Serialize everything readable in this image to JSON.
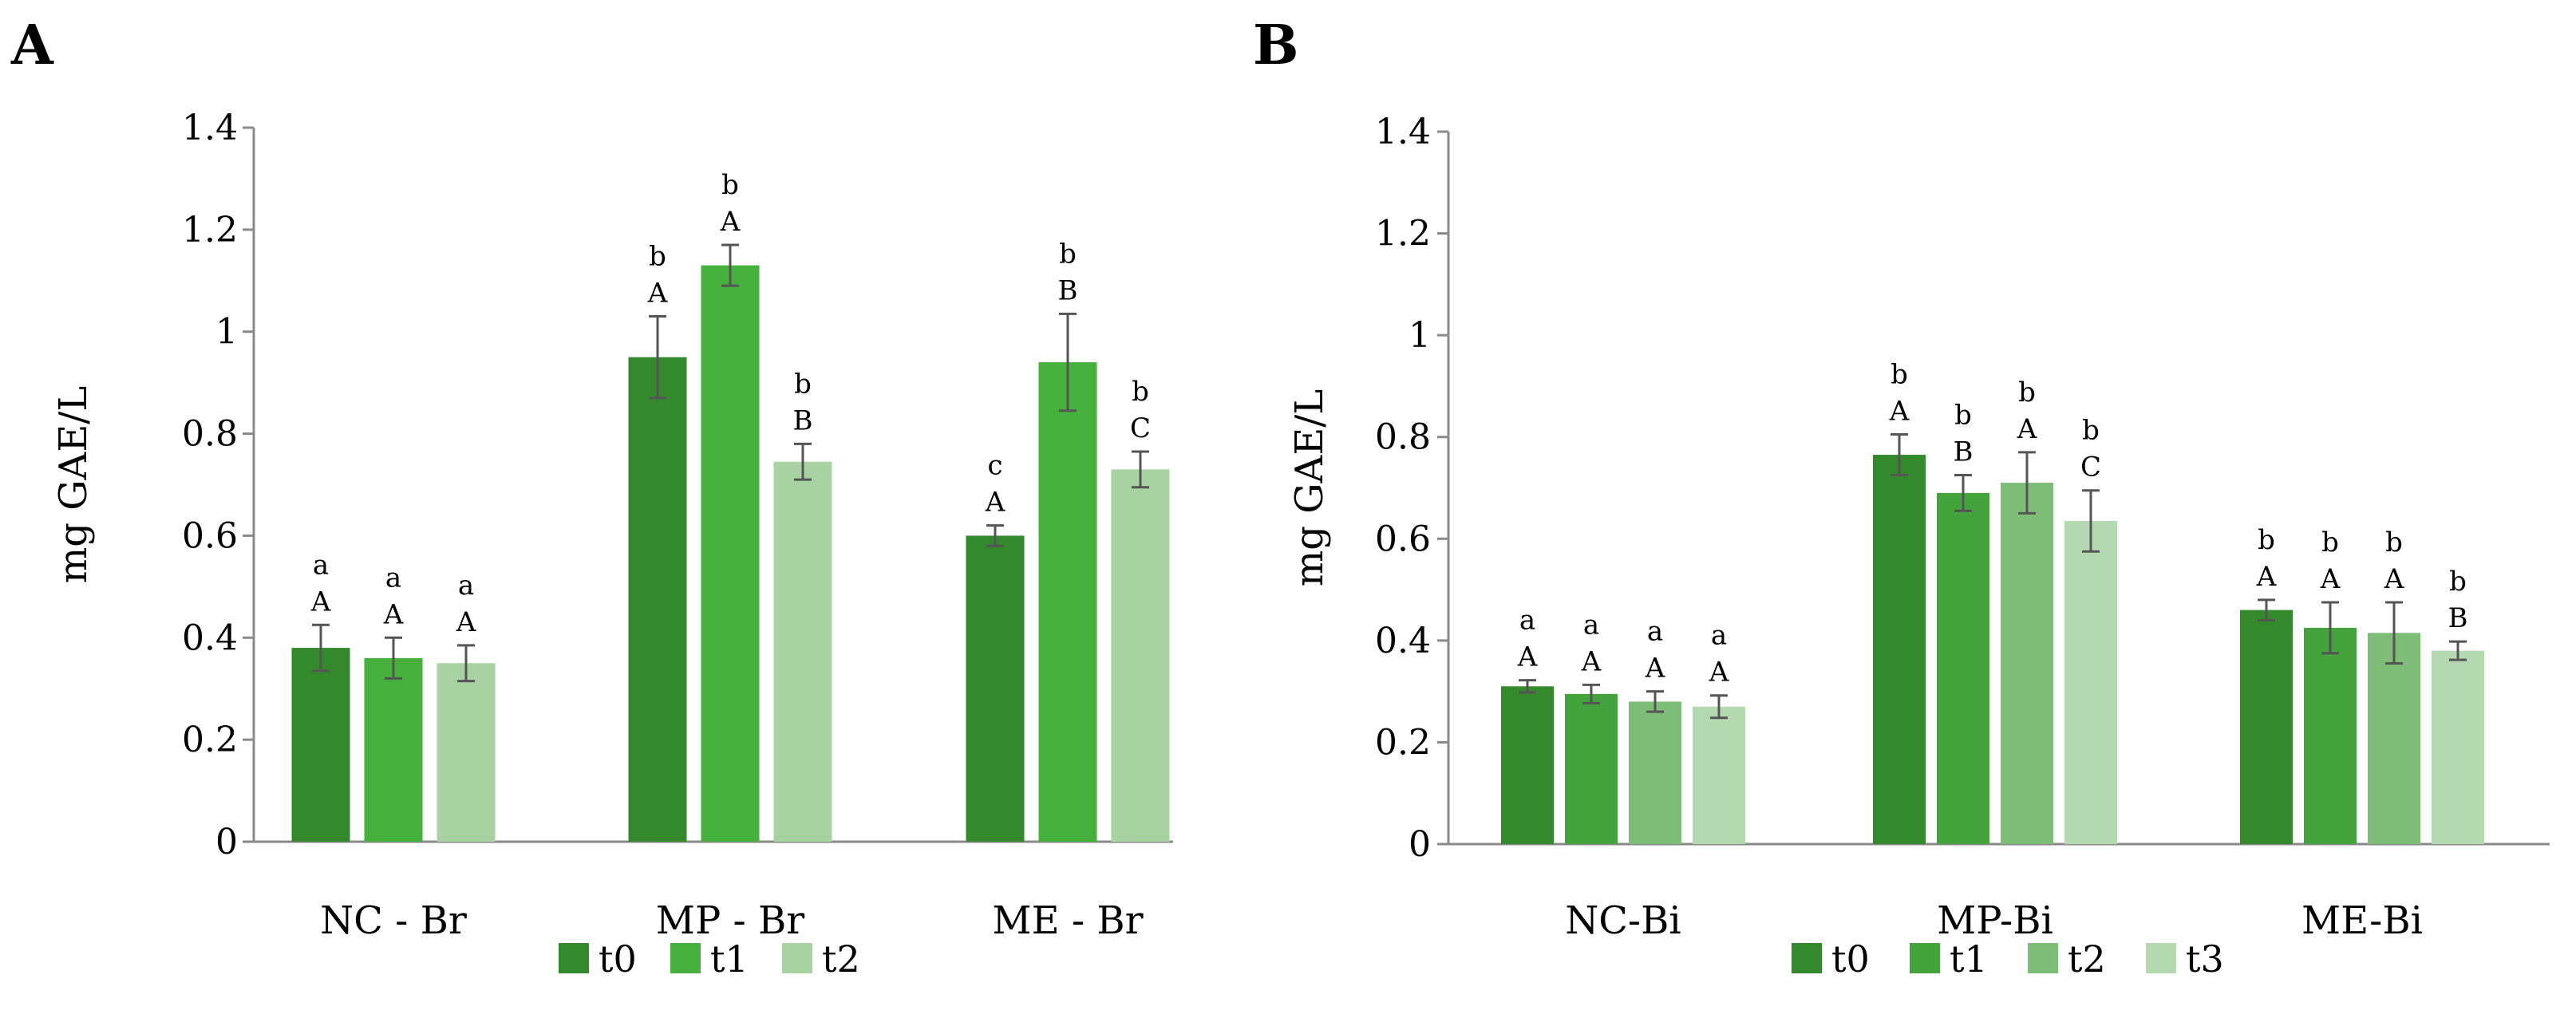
{
  "chart_data": [
    {
      "type": "bar",
      "panel": "A",
      "ylabel": "mg GAE/L",
      "ylim": [
        0,
        1.4
      ],
      "yticks": [
        "0",
        "0.2",
        "0.4",
        "0.6",
        "0.8",
        "1",
        "1.2",
        "1.4"
      ],
      "categories": [
        "NC - Br",
        "MP - Br",
        "ME - Br"
      ],
      "series": [
        {
          "name": "t0",
          "color": "#33892c",
          "values": [
            0.38,
            0.95,
            0.6
          ],
          "errors": [
            0.045,
            0.08,
            0.02
          ],
          "upper": [
            "A",
            "A",
            "A"
          ],
          "lower": [
            "a",
            "b",
            "c"
          ]
        },
        {
          "name": "t1",
          "color": "#45b03c",
          "values": [
            0.36,
            1.13,
            0.94
          ],
          "errors": [
            0.04,
            0.04,
            0.095
          ],
          "upper": [
            "A",
            "A",
            "B"
          ],
          "lower": [
            "a",
            "b",
            "b"
          ]
        },
        {
          "name": "t2",
          "color": "#a8d2a2",
          "values": [
            0.35,
            0.745,
            0.73
          ],
          "errors": [
            0.035,
            0.035,
            0.035
          ],
          "upper": [
            "A",
            "B",
            "C"
          ],
          "lower": [
            "a",
            "b",
            "b"
          ]
        }
      ],
      "legend_position": "bottom"
    },
    {
      "type": "bar",
      "panel": "B",
      "ylabel": "mg GAE/L",
      "ylim": [
        0,
        1.4
      ],
      "yticks": [
        "0",
        "0.2",
        "0.4",
        "0.6",
        "0.8",
        "1",
        "1.2",
        "1.4"
      ],
      "categories": [
        "NC-Bi",
        "MP-Bi",
        "ME-Bi"
      ],
      "series": [
        {
          "name": "t0",
          "color": "#33892c",
          "values": [
            0.31,
            0.765,
            0.46
          ],
          "errors": [
            0.012,
            0.04,
            0.02
          ],
          "upper": [
            "A",
            "A",
            "A"
          ],
          "lower": [
            "a",
            "b",
            "b"
          ]
        },
        {
          "name": "t1",
          "color": "#45a33d",
          "values": [
            0.295,
            0.69,
            0.425
          ],
          "errors": [
            0.018,
            0.035,
            0.05
          ],
          "upper": [
            "A",
            "B",
            "A"
          ],
          "lower": [
            "a",
            "b",
            "b"
          ]
        },
        {
          "name": "t2",
          "color": "#7dbd78",
          "values": [
            0.28,
            0.71,
            0.415
          ],
          "errors": [
            0.02,
            0.06,
            0.06
          ],
          "upper": [
            "A",
            "A",
            "A"
          ],
          "lower": [
            "a",
            "b",
            "b"
          ]
        },
        {
          "name": "t3",
          "color": "#b4d9b0",
          "values": [
            0.27,
            0.635,
            0.38
          ],
          "errors": [
            0.022,
            0.06,
            0.018
          ],
          "upper": [
            "A",
            "C",
            "B"
          ],
          "lower": [
            "a",
            "b",
            "b"
          ]
        }
      ],
      "legend_position": "bottom"
    }
  ]
}
